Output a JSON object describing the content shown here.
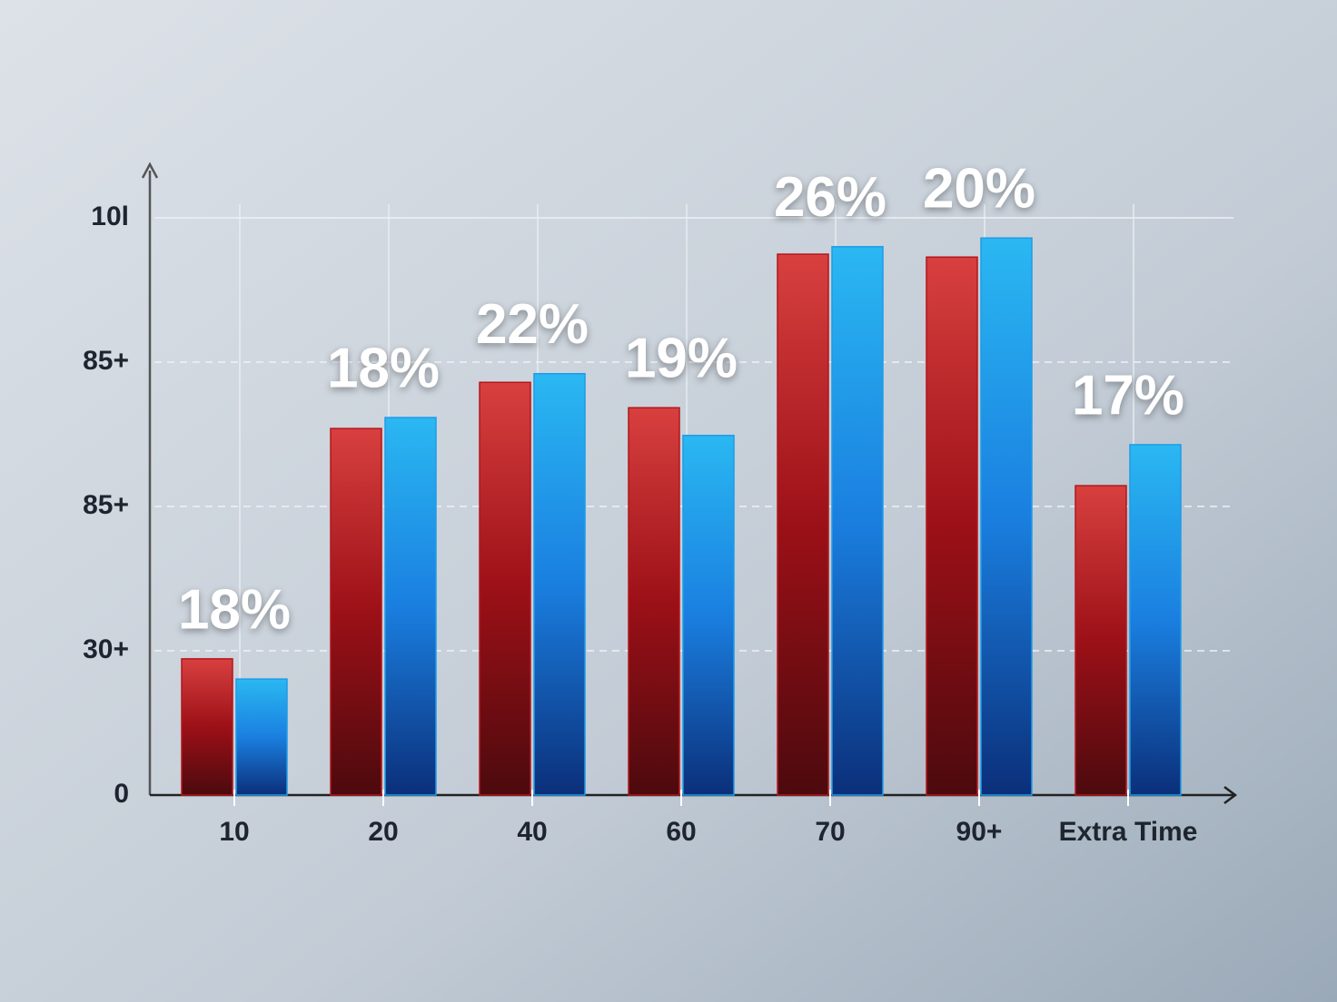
{
  "chart_data": {
    "type": "bar",
    "categories": [
      "10",
      "20",
      "40",
      "60",
      "70",
      "90+",
      "Extra Time"
    ],
    "series": [
      {
        "color": "#b3161b",
        "values": [
          23.6,
          63.5,
          71.5,
          67.1,
          93.7,
          93.2,
          53.6
        ]
      },
      {
        "color": "#1e9be8",
        "values": [
          20.1,
          65.4,
          73.0,
          62.3,
          95.0,
          96.5,
          60.7
        ]
      }
    ],
    "annotations": [
      "18%",
      "18%",
      "22%",
      "19%",
      "26%",
      "20%",
      "17%"
    ],
    "ylim": [
      0,
      100
    ],
    "yticks": [
      0,
      {
        "value": 25,
        "label": "30+"
      },
      {
        "value": 50,
        "label": "85+"
      },
      {
        "value": 75,
        "label": "85+"
      },
      {
        "value": 100,
        "label": "10l"
      }
    ],
    "grid": true
  }
}
